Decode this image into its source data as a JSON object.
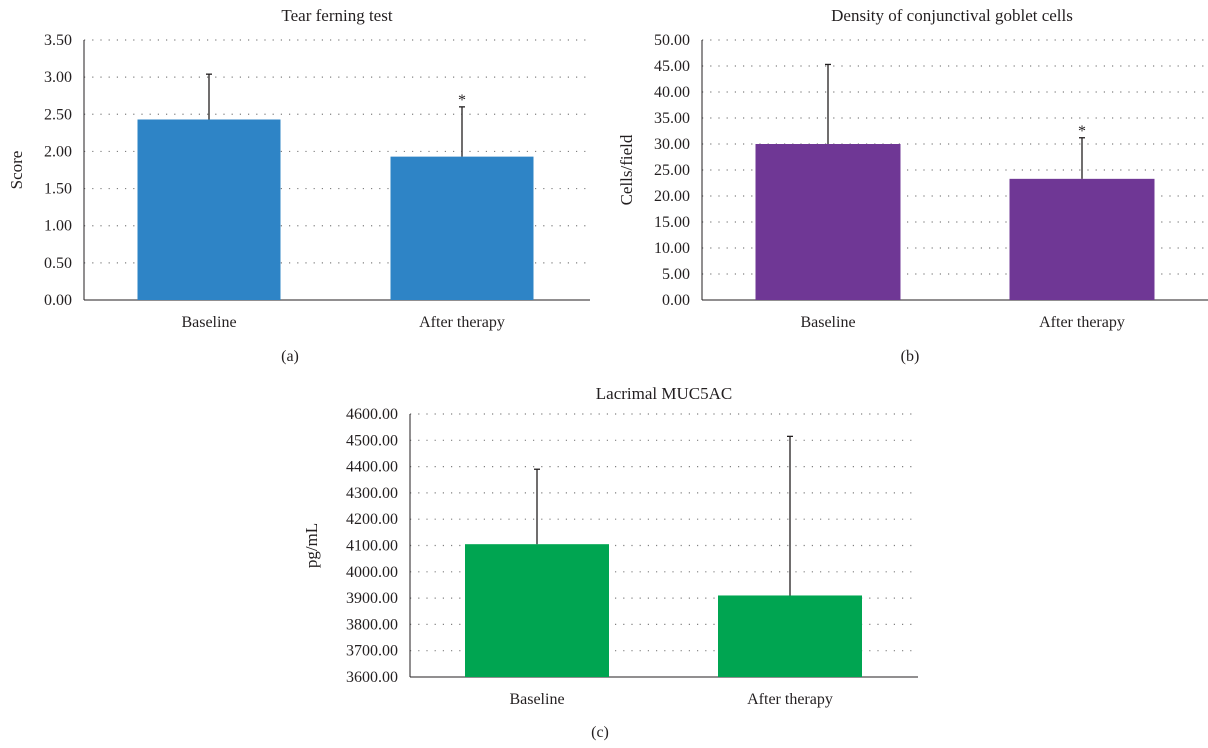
{
  "chart_data": [
    {
      "type": "bar",
      "title": "Tear ferning test",
      "ylabel": "Score",
      "categories": [
        "Baseline",
        "After therapy"
      ],
      "values": [
        2.43,
        1.93
      ],
      "error_upper": [
        3.04,
        2.6
      ],
      "significance": [
        "",
        "*"
      ],
      "ylim": [
        0,
        3.5
      ],
      "yticks": [
        "0.00",
        "0.50",
        "1.00",
        "1.50",
        "2.00",
        "2.50",
        "3.00",
        "3.50"
      ],
      "color": "#2e84c6",
      "grid": true,
      "panel_label": "(a)"
    },
    {
      "type": "bar",
      "title": "Density of conjunctival goblet cells",
      "ylabel": "Cells/field",
      "categories": [
        "Baseline",
        "After therapy"
      ],
      "values": [
        30.0,
        23.3
      ],
      "error_upper": [
        45.3,
        31.2
      ],
      "significance": [
        "",
        "*"
      ],
      "ylim": [
        0,
        50
      ],
      "yticks": [
        "0.00",
        "5.00",
        "10.00",
        "15.00",
        "20.00",
        "25.00",
        "30.00",
        "35.00",
        "40.00",
        "45.00",
        "50.00"
      ],
      "color": "#6f3795",
      "grid": true,
      "panel_label": "(b)"
    },
    {
      "type": "bar",
      "title": "Lacrimal MUC5AC",
      "ylabel": "pg/mL",
      "categories": [
        "Baseline",
        "After therapy"
      ],
      "values": [
        4105,
        3910
      ],
      "error_upper": [
        4390,
        4515
      ],
      "significance": [
        "",
        ""
      ],
      "ylim": [
        3600,
        4600
      ],
      "yticks": [
        "3600.00",
        "3700.00",
        "3800.00",
        "3900.00",
        "4000.00",
        "4100.00",
        "4200.00",
        "4300.00",
        "4400.00",
        "4500.00",
        "4600.00"
      ],
      "color": "#00a551",
      "grid": true,
      "panel_label": "(c)"
    }
  ]
}
